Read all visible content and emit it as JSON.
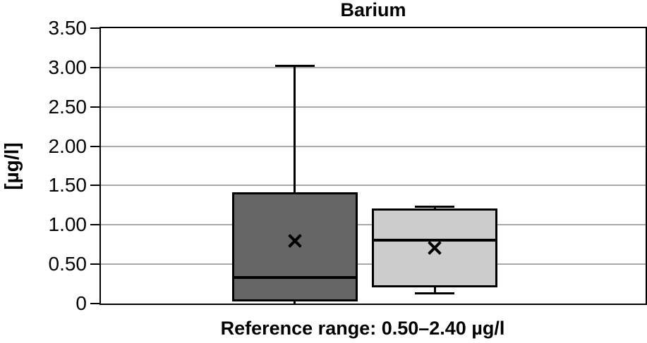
{
  "chart_data": {
    "type": "boxplot",
    "title": "Barium",
    "ylabel": "[µg/l]",
    "xlabel": "Reference range: 0.50–2.40 µg/l",
    "ylim": [
      0,
      3.5
    ],
    "ytick_interval": 0.5,
    "ytick_labels": [
      "0",
      "0.50",
      "1.00",
      "1.50",
      "2.00",
      "2.50",
      "3.00",
      "3.50"
    ],
    "grid": true,
    "legend": "none",
    "x_category_labels": [],
    "colors": {
      "box1_fill": "#666666",
      "box2_fill": "#cccccc",
      "gridline": "#a9a9a9",
      "line": "#000000",
      "background": "#ffffff"
    },
    "box_width_frac": 0.23,
    "cap_width_frac": 0.072,
    "series": [
      {
        "fill": "#666666",
        "x_center_frac": 0.356,
        "min": 0.0,
        "q1": 0.03,
        "median": 0.33,
        "q3": 1.41,
        "max": 3.02,
        "mean": 0.8
      },
      {
        "fill": "#cccccc",
        "x_center_frac": 0.613,
        "min": 0.13,
        "q1": 0.21,
        "median": 0.81,
        "q3": 1.21,
        "max": 1.23,
        "mean": 0.71
      }
    ]
  }
}
